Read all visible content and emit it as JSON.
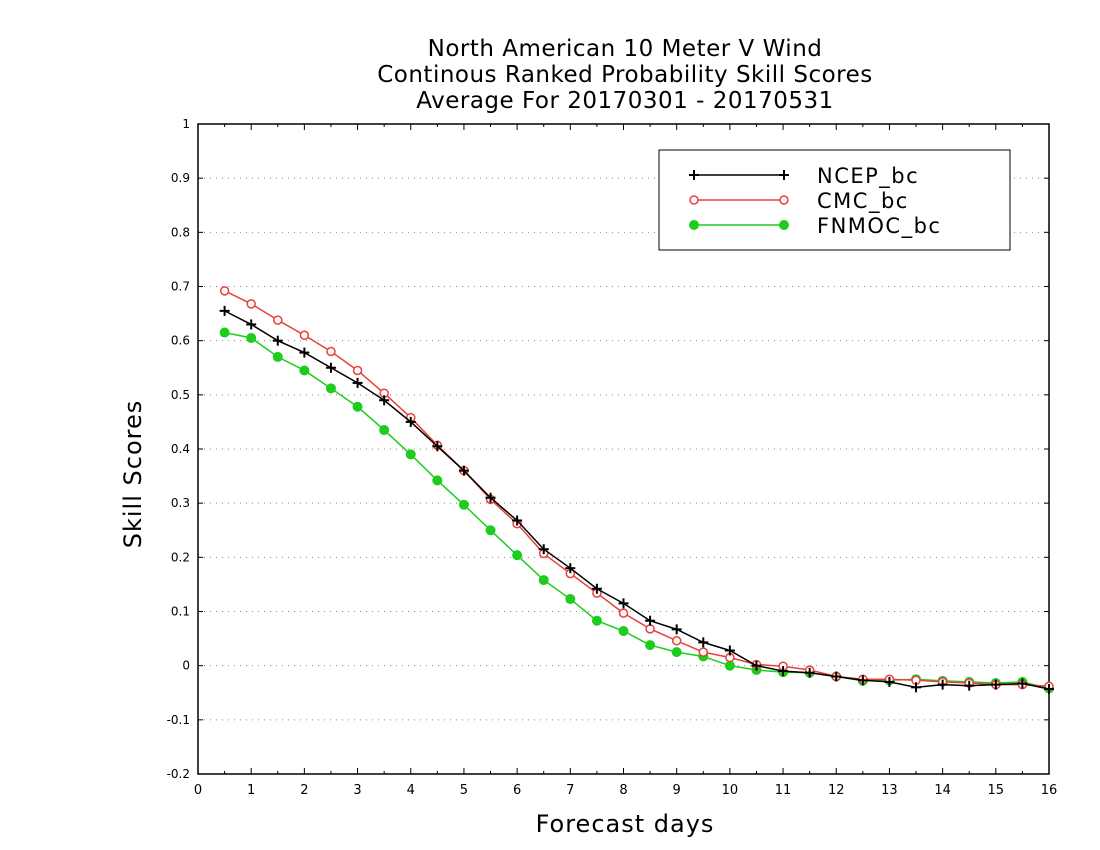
{
  "chart_data": {
    "type": "line",
    "title_lines": [
      "North American 10 Meter V Wind",
      "Continous Ranked Probability Skill Scores",
      "Average For 20170301 - 20170531"
    ],
    "xlabel": "Forecast days",
    "ylabel": "Skill Scores",
    "xlim": [
      0,
      16
    ],
    "ylim": [
      -0.2,
      1
    ],
    "x_ticks": [
      "0",
      "1",
      "2",
      "3",
      "4",
      "5",
      "6",
      "7",
      "8",
      "9",
      "10",
      "11",
      "12",
      "13",
      "14",
      "15",
      "16"
    ],
    "y_ticks": [
      "-0.2",
      "-0.1",
      "0",
      "0.1",
      "0.2",
      "0.3",
      "0.4",
      "0.5",
      "0.6",
      "0.7",
      "0.8",
      "0.9",
      "1"
    ],
    "grid": "horizontal dotted",
    "legend_position": "top-right",
    "x": [
      0.5,
      1,
      1.5,
      2,
      2.5,
      3,
      3.5,
      4,
      4.5,
      5,
      5.5,
      6,
      6.5,
      7,
      7.5,
      8,
      8.5,
      9,
      9.5,
      10,
      10.5,
      11,
      11.5,
      12,
      12.5,
      13,
      13.5,
      14,
      14.5,
      15,
      15.5,
      16
    ],
    "series": [
      {
        "name": "NCEP_bc",
        "color": "#000000",
        "marker": "plus",
        "values": [
          0.655,
          0.63,
          0.6,
          0.578,
          0.55,
          0.522,
          0.49,
          0.45,
          0.405,
          0.36,
          0.31,
          0.268,
          0.215,
          0.18,
          0.142,
          0.115,
          0.083,
          0.067,
          0.043,
          0.028,
          0.0,
          -0.01,
          -0.013,
          -0.02,
          -0.027,
          -0.03,
          -0.04,
          -0.035,
          -0.037,
          -0.035,
          -0.033,
          -0.043
        ]
      },
      {
        "name": "CMC_bc",
        "color": "#e8403c",
        "marker": "open-circle",
        "values": [
          0.692,
          0.668,
          0.638,
          0.61,
          0.58,
          0.545,
          0.503,
          0.458,
          0.407,
          0.36,
          0.307,
          0.262,
          0.207,
          0.17,
          0.134,
          0.097,
          0.068,
          0.046,
          0.025,
          0.015,
          0.002,
          -0.001,
          -0.008,
          -0.02,
          -0.025,
          -0.025,
          -0.027,
          -0.03,
          -0.032,
          -0.035,
          -0.035,
          -0.038
        ]
      },
      {
        "name": "FNMOC_bc",
        "color": "#1ecc1e",
        "marker": "filled-circle",
        "values": [
          0.615,
          0.605,
          0.57,
          0.545,
          0.512,
          0.478,
          0.435,
          0.39,
          0.342,
          0.297,
          0.25,
          0.204,
          0.158,
          0.123,
          0.083,
          0.064,
          0.038,
          0.025,
          0.017,
          0.0,
          -0.008,
          -0.012,
          -0.013,
          -0.02,
          -0.028,
          -0.027,
          -0.025,
          -0.028,
          -0.03,
          -0.032,
          -0.03,
          -0.042
        ]
      }
    ]
  }
}
